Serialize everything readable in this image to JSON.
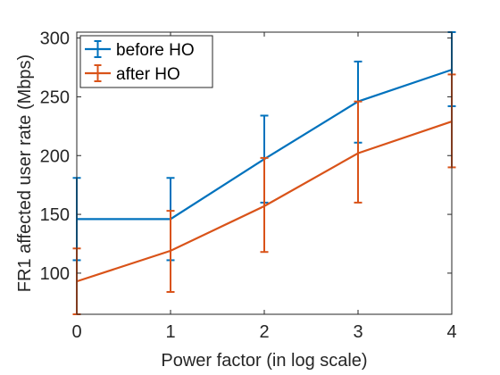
{
  "chart_data": {
    "type": "line",
    "x": [
      0,
      1,
      2,
      3,
      4
    ],
    "xlabel": "Power factor (in log scale)",
    "ylabel": "FR1 affected user rate (Mbps)",
    "xlim": [
      0,
      4
    ],
    "ylim": [
      65,
      305
    ],
    "xticks": [
      0,
      1,
      2,
      3,
      4
    ],
    "yticks": [
      100,
      150,
      200,
      250,
      300
    ],
    "grid": false,
    "legend": "top-left",
    "series": [
      {
        "name": "before HO",
        "color": "#0072BD",
        "values": [
          146,
          146,
          197,
          246,
          273
        ],
        "error_lower": [
          111,
          111,
          160,
          211,
          242
        ],
        "error_upper": [
          181,
          181,
          234,
          280,
          305
        ]
      },
      {
        "name": "after HO",
        "color": "#D95319",
        "values": [
          93,
          119,
          157,
          202,
          229
        ],
        "error_lower": [
          65,
          84,
          118,
          160,
          190
        ],
        "error_upper": [
          121,
          153,
          198,
          246,
          269
        ]
      }
    ]
  }
}
